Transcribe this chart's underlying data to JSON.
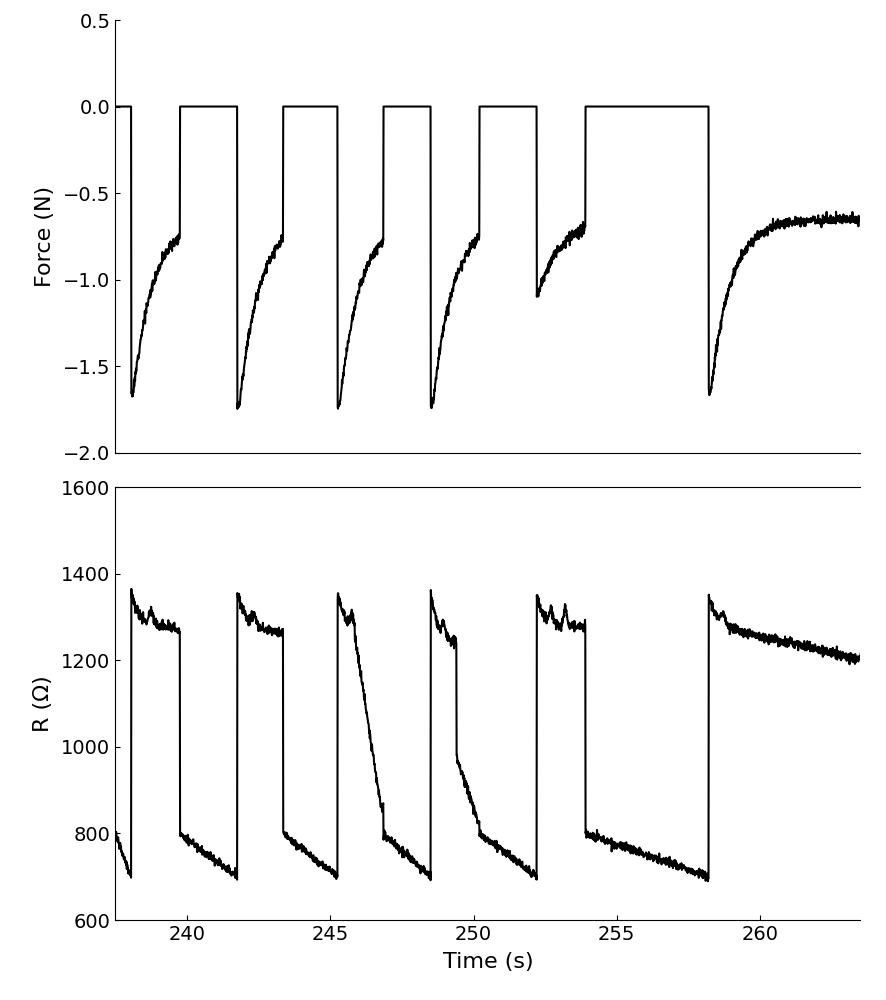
{
  "force_ylabel": "Force (N)",
  "resistance_ylabel": "R (Ω)",
  "xlabel": "Time (s)",
  "xlim": [
    237.5,
    263.5
  ],
  "force_ylim": [
    -2.0,
    0.5
  ],
  "resistance_ylim": [
    600,
    1600
  ],
  "force_yticks": [
    0.5,
    0.0,
    -0.5,
    -1.0,
    -1.5,
    -2.0
  ],
  "resistance_yticks": [
    600,
    800,
    1000,
    1200,
    1400,
    1600
  ],
  "xticks": [
    240,
    245,
    250,
    255,
    260
  ],
  "line_color": "#000000",
  "line_width": 1.5,
  "background_color": "#ffffff",
  "fig_width": 8.87,
  "fig_height": 10.0,
  "dpi": 100
}
